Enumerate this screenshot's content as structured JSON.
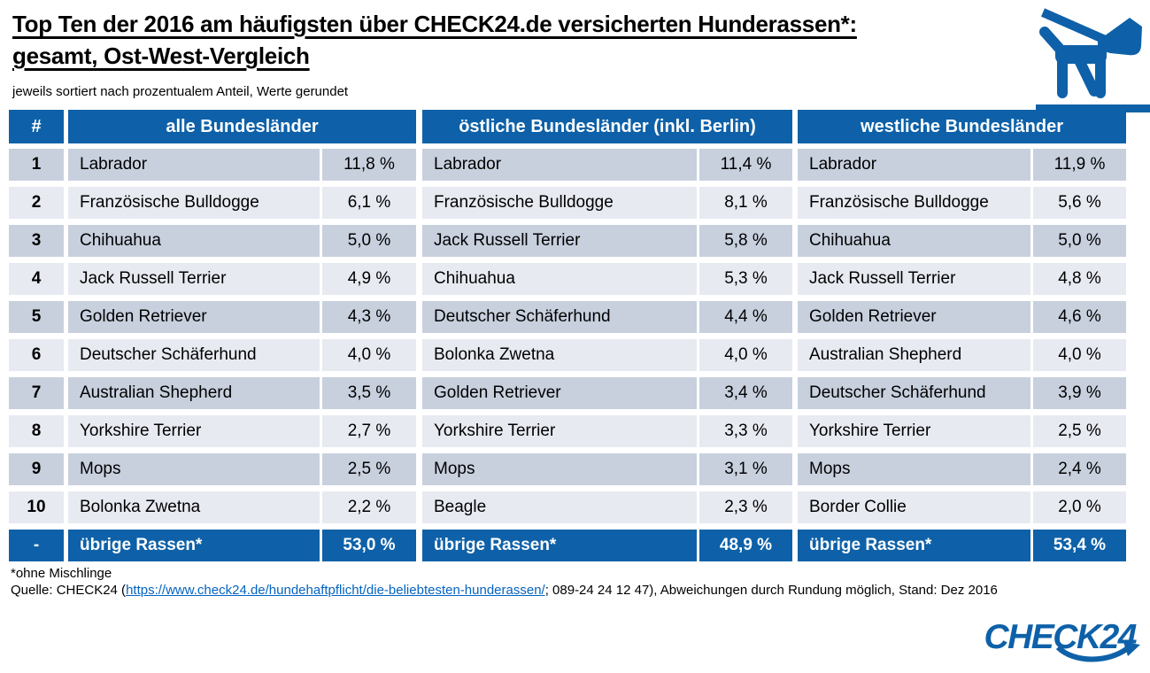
{
  "header": {
    "title_line1": "Top Ten der 2016 am häufigsten über CHECK24.de versicherten Hunderassen*:",
    "title_line2": "gesamt, Ost-West-Vergleich",
    "subtitle": "jeweils sortiert nach prozentualem Anteil, Werte gerundet"
  },
  "table": {
    "rank_header": "#",
    "region_headers": [
      "alle Bundesländer",
      "östliche Bundesländer (inkl. Berlin)",
      "westliche Bundesländer"
    ],
    "rows": [
      {
        "rank": "1",
        "all": {
          "breed": "Labrador",
          "pct": "11,8 %"
        },
        "east": {
          "breed": "Labrador",
          "pct": "11,4 %"
        },
        "west": {
          "breed": "Labrador",
          "pct": "11,9 %"
        }
      },
      {
        "rank": "2",
        "all": {
          "breed": "Französische Bulldogge",
          "pct": "6,1 %"
        },
        "east": {
          "breed": "Französische Bulldogge",
          "pct": "8,1 %"
        },
        "west": {
          "breed": "Französische Bulldogge",
          "pct": "5,6 %"
        }
      },
      {
        "rank": "3",
        "all": {
          "breed": "Chihuahua",
          "pct": "5,0 %"
        },
        "east": {
          "breed": "Jack Russell Terrier",
          "pct": "5,8 %"
        },
        "west": {
          "breed": "Chihuahua",
          "pct": "5,0 %"
        }
      },
      {
        "rank": "4",
        "all": {
          "breed": "Jack Russell Terrier",
          "pct": "4,9 %"
        },
        "east": {
          "breed": "Chihuahua",
          "pct": "5,3 %"
        },
        "west": {
          "breed": "Jack Russell Terrier",
          "pct": "4,8 %"
        }
      },
      {
        "rank": "5",
        "all": {
          "breed": "Golden Retriever",
          "pct": "4,3 %"
        },
        "east": {
          "breed": "Deutscher Schäferhund",
          "pct": "4,4 %"
        },
        "west": {
          "breed": "Golden Retriever",
          "pct": "4,6 %"
        }
      },
      {
        "rank": "6",
        "all": {
          "breed": "Deutscher Schäferhund",
          "pct": "4,0 %"
        },
        "east": {
          "breed": "Bolonka Zwetna",
          "pct": "4,0 %"
        },
        "west": {
          "breed": "Australian Shepherd",
          "pct": "4,0 %"
        }
      },
      {
        "rank": "7",
        "all": {
          "breed": "Australian Shepherd",
          "pct": "3,5 %"
        },
        "east": {
          "breed": "Golden Retriever",
          "pct": "3,4 %"
        },
        "west": {
          "breed": "Deutscher Schäferhund",
          "pct": "3,9 %"
        }
      },
      {
        "rank": "8",
        "all": {
          "breed": "Yorkshire Terrier",
          "pct": "2,7 %"
        },
        "east": {
          "breed": "Yorkshire Terrier",
          "pct": "3,3 %"
        },
        "west": {
          "breed": "Yorkshire Terrier",
          "pct": "2,5 %"
        }
      },
      {
        "rank": "9",
        "all": {
          "breed": "Mops",
          "pct": "2,5 %"
        },
        "east": {
          "breed": "Mops",
          "pct": "3,1 %"
        },
        "west": {
          "breed": "Mops",
          "pct": "2,4 %"
        }
      },
      {
        "rank": "10",
        "all": {
          "breed": "Bolonka Zwetna",
          "pct": "2,2 %"
        },
        "east": {
          "breed": "Beagle",
          "pct": "2,3 %"
        },
        "west": {
          "breed": "Border Collie",
          "pct": "2,0 %"
        }
      },
      {
        "rank": "-",
        "all": {
          "breed": "übrige Rassen*",
          "pct": "53,0 %"
        },
        "east": {
          "breed": "übrige Rassen*",
          "pct": "48,9 %"
        },
        "west": {
          "breed": "übrige Rassen*",
          "pct": "53,4 %"
        }
      }
    ]
  },
  "footer": {
    "footnote": "*ohne Mischlinge",
    "source_prefix": "Quelle: CHECK24 (",
    "source_link": "https://www.check24.de/hundehaftpflicht/die-beliebtesten-hunderassen/",
    "source_suffix": "; 089-24 24 12 47), Abweichungen durch Rundung möglich, Stand: Dez 2016",
    "logo_text": "CHECK24"
  },
  "icons": {
    "top_right": "dog-on-leash-icon",
    "logo_swoosh": "curved-arrow-icon"
  },
  "colors": {
    "header_blue": "#0E61A8",
    "row_odd": "#C8D0DE",
    "row_even": "#E8EAF2",
    "link_blue": "#0563C1",
    "logo_blue": "#0E61A8"
  },
  "chart_data": {
    "type": "table",
    "title": "Top Ten der 2016 am häufigsten über CHECK24.de versicherten Hunderassen: gesamt, Ost-West-Vergleich",
    "unit": "percent",
    "note": "jeweils sortiert nach prozentualem Anteil, Werte gerundet; *ohne Mischlinge",
    "groups": [
      {
        "name": "alle Bundesländer",
        "entries": [
          [
            "Labrador",
            11.8
          ],
          [
            "Französische Bulldogge",
            6.1
          ],
          [
            "Chihuahua",
            5.0
          ],
          [
            "Jack Russell Terrier",
            4.9
          ],
          [
            "Golden Retriever",
            4.3
          ],
          [
            "Deutscher Schäferhund",
            4.0
          ],
          [
            "Australian Shepherd",
            3.5
          ],
          [
            "Yorkshire Terrier",
            2.7
          ],
          [
            "Mops",
            2.5
          ],
          [
            "Bolonka Zwetna",
            2.2
          ],
          [
            "übrige Rassen",
            53.0
          ]
        ]
      },
      {
        "name": "östliche Bundesländer (inkl. Berlin)",
        "entries": [
          [
            "Labrador",
            11.4
          ],
          [
            "Französische Bulldogge",
            8.1
          ],
          [
            "Jack Russell Terrier",
            5.8
          ],
          [
            "Chihuahua",
            5.3
          ],
          [
            "Deutscher Schäferhund",
            4.4
          ],
          [
            "Bolonka Zwetna",
            4.0
          ],
          [
            "Golden Retriever",
            3.4
          ],
          [
            "Yorkshire Terrier",
            3.3
          ],
          [
            "Mops",
            3.1
          ],
          [
            "Beagle",
            2.3
          ],
          [
            "übrige Rassen",
            48.9
          ]
        ]
      },
      {
        "name": "westliche Bundesländer",
        "entries": [
          [
            "Labrador",
            11.9
          ],
          [
            "Französische Bulldogge",
            5.6
          ],
          [
            "Chihuahua",
            5.0
          ],
          [
            "Jack Russell Terrier",
            4.8
          ],
          [
            "Golden Retriever",
            4.6
          ],
          [
            "Australian Shepherd",
            4.0
          ],
          [
            "Deutscher Schäferhund",
            3.9
          ],
          [
            "Yorkshire Terrier",
            2.5
          ],
          [
            "Mops",
            2.4
          ],
          [
            "Border Collie",
            2.0
          ],
          [
            "übrige Rassen",
            53.4
          ]
        ]
      }
    ]
  }
}
